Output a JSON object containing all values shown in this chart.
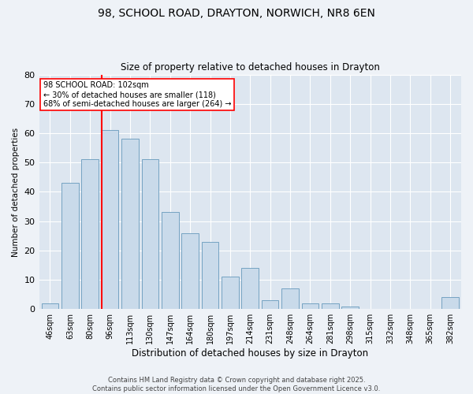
{
  "title_line1": "98, SCHOOL ROAD, DRAYTON, NORWICH, NR8 6EN",
  "title_line2": "Size of property relative to detached houses in Drayton",
  "xlabel": "Distribution of detached houses by size in Drayton",
  "ylabel": "Number of detached properties",
  "categories": [
    "46sqm",
    "63sqm",
    "80sqm",
    "96sqm",
    "113sqm",
    "130sqm",
    "147sqm",
    "164sqm",
    "180sqm",
    "197sqm",
    "214sqm",
    "231sqm",
    "248sqm",
    "264sqm",
    "281sqm",
    "298sqm",
    "315sqm",
    "332sqm",
    "348sqm",
    "365sqm",
    "382sqm"
  ],
  "values": [
    2,
    43,
    51,
    61,
    58,
    51,
    33,
    26,
    23,
    11,
    14,
    3,
    7,
    2,
    2,
    1,
    0,
    0,
    0,
    0,
    4
  ],
  "bar_color": "#c9daea",
  "bar_edge_color": "#6699bb",
  "vline_x_index": 3,
  "vline_color": "red",
  "annotation_text": "98 SCHOOL ROAD: 102sqm\n← 30% of detached houses are smaller (118)\n68% of semi-detached houses are larger (264) →",
  "annotation_box_color": "white",
  "annotation_box_edge": "red",
  "ylim": [
    0,
    80
  ],
  "yticks": [
    0,
    10,
    20,
    30,
    40,
    50,
    60,
    70,
    80
  ],
  "background_color": "#eef2f7",
  "plot_bg_color": "#dde6f0",
  "footer_line1": "Contains HM Land Registry data © Crown copyright and database right 2025.",
  "footer_line2": "Contains public sector information licensed under the Open Government Licence v3.0."
}
